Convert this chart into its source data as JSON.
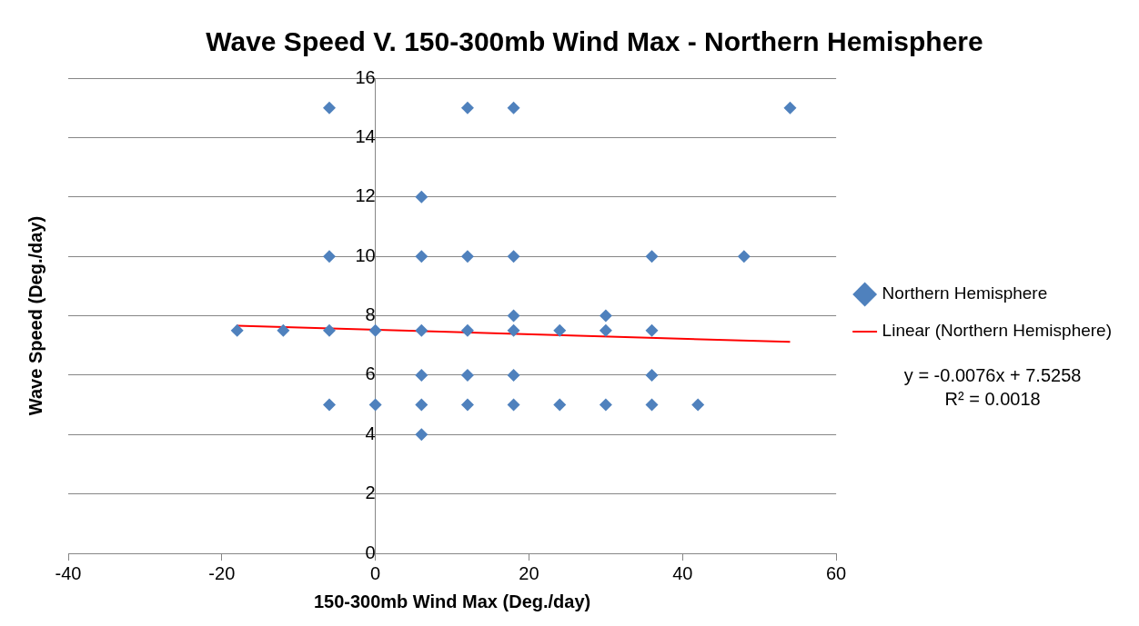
{
  "chart_data": {
    "type": "scatter",
    "title": "Wave Speed V. 150-300mb Wind Max - Northern Hemisphere",
    "xlabel": "150-300mb Wind Max (Deg./day)",
    "ylabel": "Wave Speed (Deg./day)",
    "series": [
      {
        "name": "Northern Hemisphere",
        "color": "#4f81bd",
        "marker": "diamond",
        "x": [
          -18,
          -12,
          -6,
          -6,
          -6,
          -6,
          0,
          0,
          6,
          6,
          6,
          6,
          6,
          6,
          12,
          12,
          12,
          12,
          12,
          18,
          18,
          18,
          18,
          18,
          18,
          24,
          24,
          30,
          30,
          30,
          36,
          36,
          36,
          36,
          42,
          48,
          54
        ],
        "values": [
          7.5,
          7.5,
          15,
          10,
          7.5,
          5,
          7.5,
          5,
          12,
          10,
          7.5,
          6,
          5,
          4,
          15,
          10,
          7.5,
          6,
          5,
          15,
          10,
          8,
          7.5,
          6,
          5,
          7.5,
          5,
          8,
          7.5,
          5,
          10,
          7.5,
          6,
          5,
          5,
          10,
          15
        ]
      },
      {
        "name": "Linear (Northern Hemisphere)",
        "type": "line",
        "color": "#ff0000",
        "marker": "none",
        "line_style": "solid",
        "x": [
          -18,
          54
        ],
        "values": [
          7.66,
          7.12
        ]
      }
    ],
    "xlim": [
      -40,
      60
    ],
    "xticks": [
      -40,
      -20,
      0,
      20,
      40,
      60
    ],
    "ylim": [
      0,
      16
    ],
    "yticks": [
      0,
      2,
      4,
      6,
      8,
      10,
      12,
      14,
      16
    ],
    "grid": "y",
    "legend": "right",
    "annotations": [
      "y = -0.0076x + 7.5258\nR² = 0.0018"
    ]
  }
}
